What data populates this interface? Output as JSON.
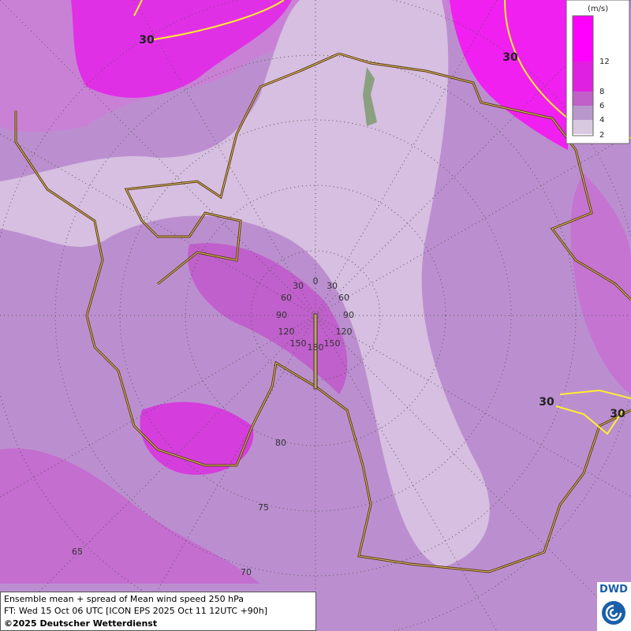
{
  "legend": {
    "unit": "(m/s)",
    "levels": [
      "12",
      "8",
      "6",
      "4",
      "2"
    ]
  },
  "contour_labels": [
    "30",
    "30",
    "30",
    "30"
  ],
  "longitude_labels": [
    "0",
    "30",
    "30",
    "60",
    "60",
    "90",
    "90",
    "120",
    "120",
    "150",
    "150",
    "180"
  ],
  "latitude_labels": [
    "80",
    "75",
    "70",
    "65"
  ],
  "footer": {
    "line1": "Ensemble mean + spread of Mean wind speed 250 hPa",
    "line2": "FT: Wed 15 Oct 06 UTC [ICON EPS 2025 Oct 11 12UTC +90h]",
    "line3": "©2025 Deutscher Wetterdienst"
  },
  "logo": "DWD"
}
